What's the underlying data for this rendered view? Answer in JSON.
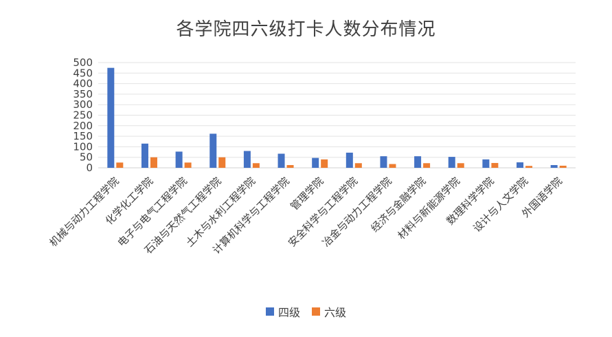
{
  "chart_data": {
    "type": "bar",
    "title": "各学院四六级打卡人数分布情况",
    "categories": [
      "机械与动力工程学院",
      "化学化工学院",
      "电子与电气工程学院",
      "石油与天然气工程学院",
      "土木与水利工程学院",
      "计算机科学与工程学院",
      "管理学院",
      "安全科学与工程学院",
      "冶金与动力工程学院",
      "经济与金融学院",
      "材料与新能源学院",
      "数理科学学院",
      "设计与人文学院",
      "外国语学院"
    ],
    "series": [
      {
        "name": "四级",
        "color": "#4472C4",
        "values": [
          475,
          115,
          77,
          162,
          80,
          67,
          47,
          72,
          55,
          55,
          52,
          40,
          26,
          13
        ]
      },
      {
        "name": "六级",
        "color": "#ED7D31",
        "values": [
          25,
          50,
          25,
          50,
          22,
          13,
          40,
          22,
          18,
          22,
          22,
          23,
          9,
          10
        ]
      }
    ],
    "ylim": [
      0,
      500
    ],
    "yticks": [
      0,
      50,
      100,
      150,
      200,
      250,
      300,
      350,
      400,
      450,
      500
    ],
    "grid": true,
    "legend_position": "bottom"
  }
}
